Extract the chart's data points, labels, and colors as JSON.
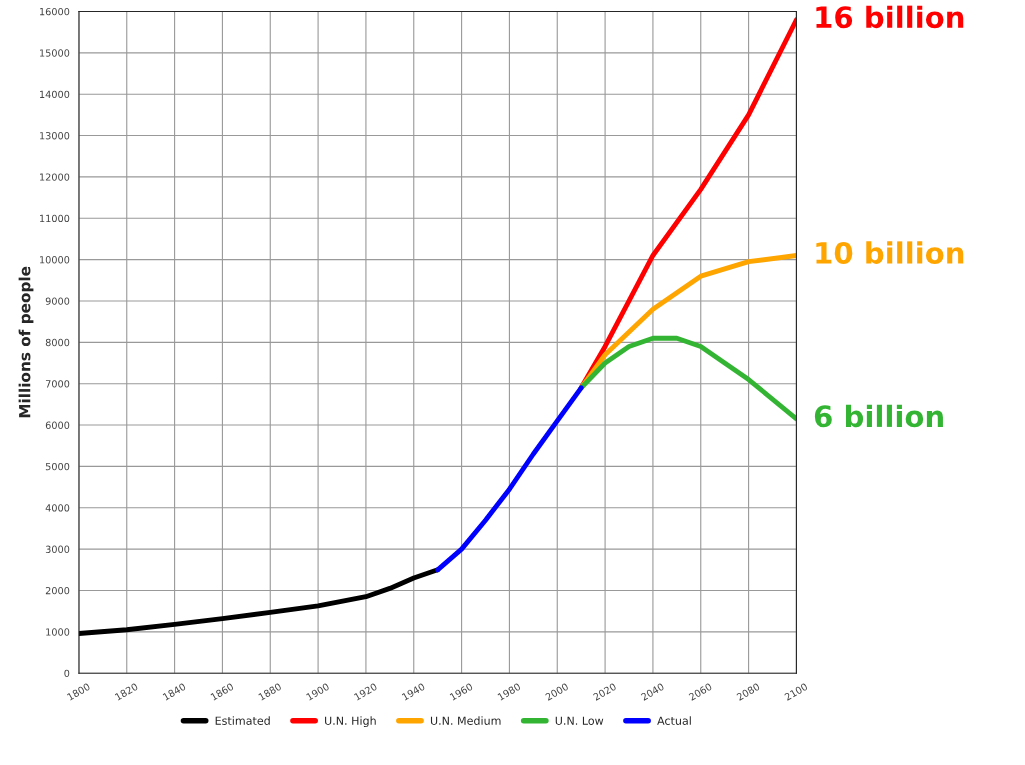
{
  "chart_data": {
    "type": "line",
    "ylabel": "Millions of people",
    "series": [
      {
        "name": "Estimated",
        "color": "#000000",
        "x": [
          1800,
          1820,
          1840,
          1860,
          1880,
          1900,
          1920,
          1930,
          1940,
          1950
        ],
        "values": [
          960,
          1050,
          1180,
          1320,
          1470,
          1630,
          1850,
          2050,
          2300,
          2500
        ]
      },
      {
        "name": "U.N. High",
        "color": "#ff0000",
        "x": [
          2010,
          2020,
          2040,
          2060,
          2080,
          2100
        ],
        "values": [
          6900,
          7900,
          10100,
          11700,
          13500,
          15800
        ]
      },
      {
        "name": "U.N. Medium",
        "color": "#ffa500",
        "x": [
          2010,
          2020,
          2040,
          2060,
          2080,
          2100
        ],
        "values": [
          6900,
          7700,
          8800,
          9600,
          9950,
          10100
        ]
      },
      {
        "name": "U.N. Low",
        "color": "#33b533",
        "x": [
          2010,
          2020,
          2030,
          2040,
          2050,
          2060,
          2080,
          2100
        ],
        "values": [
          6900,
          7500,
          7900,
          8100,
          8100,
          7900,
          7100,
          6150
        ]
      },
      {
        "name": "Actual",
        "color": "#0000ff",
        "x": [
          1950,
          1960,
          1970,
          1980,
          1990,
          2000,
          2010
        ],
        "values": [
          2500,
          3000,
          3700,
          4450,
          5300,
          6100,
          6900
        ]
      }
    ],
    "xlim": [
      1800,
      2100
    ],
    "xticks": [
      1800,
      1820,
      1840,
      1860,
      1880,
      1900,
      1920,
      1940,
      1960,
      1980,
      2000,
      2020,
      2040,
      2060,
      2080,
      2100
    ],
    "ylim": [
      0,
      16000
    ],
    "yticks": [
      0,
      1000,
      2000,
      3000,
      4000,
      5000,
      6000,
      7000,
      8000,
      9000,
      10000,
      11000,
      12000,
      13000,
      14000,
      15000,
      16000
    ],
    "annotations": [
      "16 billion",
      "10 billion",
      "6 billion"
    ],
    "grid": true,
    "legend": "bottom",
    "marker": "none",
    "line_style": "solid"
  }
}
